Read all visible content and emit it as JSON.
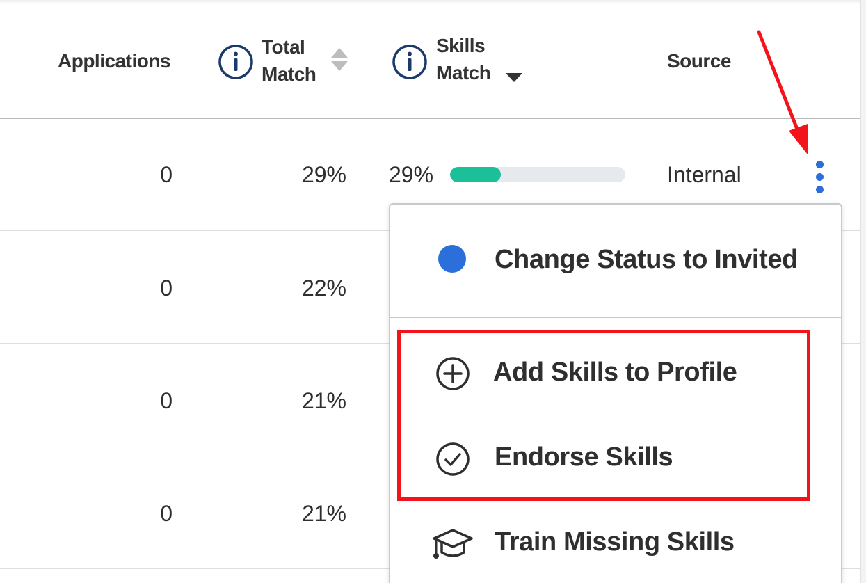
{
  "table": {
    "headers": {
      "applications": "Applications",
      "total_match_line1": "Total",
      "total_match_line2": "Match",
      "skills_match_line1": "Skills",
      "skills_match_line2": "Match",
      "source": "Source"
    },
    "rows": [
      {
        "applications": "0",
        "total_match": "29%",
        "skills_match": "29%",
        "skills_match_fraction": 0.29,
        "source": "Internal"
      },
      {
        "applications": "0",
        "total_match": "22%"
      },
      {
        "applications": "0",
        "total_match": "21%"
      },
      {
        "applications": "0",
        "total_match": "21%"
      }
    ]
  },
  "menu": {
    "items": [
      {
        "label": "Change Status to Invited",
        "icon": "blue-dot-icon"
      },
      {
        "label": "Add Skills to Profile",
        "icon": "plus-circle-icon"
      },
      {
        "label": "Endorse Skills",
        "icon": "check-circle-icon"
      },
      {
        "label": "Train Missing Skills",
        "icon": "graduation-cap-icon"
      }
    ]
  },
  "colors": {
    "accent_blue": "#2b6fdb",
    "progress_fill": "#1bbf98",
    "progress_track": "#e6e9ed",
    "annotation_red": "#f2141a",
    "info_icon": "#1b3a6b"
  },
  "icons": {
    "info": "info-circle-icon",
    "sort": "sort-both-icon",
    "sort_active": "sort-down-icon",
    "row_menu": "kebab-menu-icon"
  }
}
